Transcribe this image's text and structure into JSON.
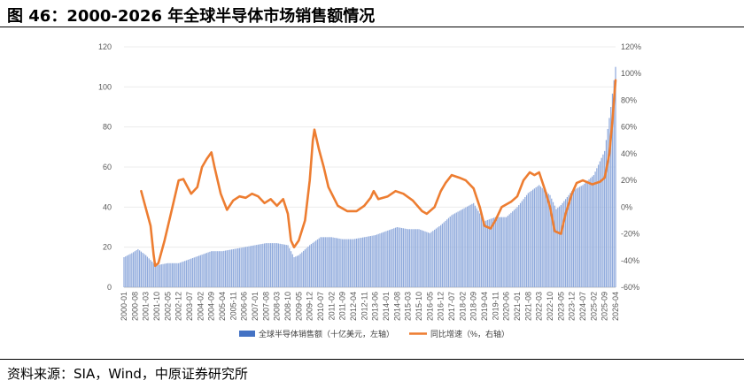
{
  "header": {
    "title": "图 46：2000-2026 年全球半导体市场销售额情况"
  },
  "footer": {
    "source": "资料来源：SIA，Wind，中原证券研究所"
  },
  "chart_data": {
    "type": "bar+line",
    "title": "",
    "left_axis": {
      "min": 0,
      "max": 120,
      "ticks": [
        "0",
        "20",
        "40",
        "60",
        "80",
        "100",
        "120"
      ]
    },
    "right_axis": {
      "min": -60,
      "max": 120,
      "ticks": [
        "-60%",
        "-40%",
        "-20%",
        "0%",
        "20%",
        "40%",
        "60%",
        "80%",
        "100%",
        "120%"
      ]
    },
    "x_tick_labels": [
      "2000-01",
      "2000-08",
      "2001-03",
      "2001-10",
      "2002-05",
      "2002-12",
      "2003-07",
      "2004-02",
      "2004-09",
      "2005-04",
      "2005-11",
      "2006-06",
      "2007-01",
      "2007-08",
      "2008-03",
      "2008-10",
      "2009-05",
      "2009-12",
      "2010-07",
      "2011-02",
      "2011-09",
      "2012-04",
      "2012-11",
      "2013-06",
      "2014-01",
      "2014-08",
      "2015-03",
      "2015-10",
      "2016-05",
      "2016-12",
      "2017-07",
      "2018-02",
      "2018-09",
      "2019-04",
      "2019-11",
      "2020-06",
      "2021-01",
      "2021-08",
      "2022-03",
      "2022-10",
      "2023-05",
      "2023-12",
      "2024-07",
      "2025-02",
      "2025-09",
      "2026-04"
    ],
    "legend": [
      {
        "name": "全球半导体销售额（十亿美元，左轴）",
        "type": "bar",
        "color": "#4472C4"
      },
      {
        "name": "同比增速（%，右轴）",
        "type": "line",
        "color": "#ED7D31"
      }
    ],
    "legend_position": "bottom",
    "series": [
      {
        "name": "全球半导体销售额（十亿美元，左轴）",
        "axis": "left",
        "type": "bar",
        "points": [
          [
            "2000-01",
            15
          ],
          [
            "2000-06",
            17
          ],
          [
            "2000-10",
            19
          ],
          [
            "2001-03",
            16
          ],
          [
            "2001-08",
            12
          ],
          [
            "2001-10",
            11
          ],
          [
            "2002-05",
            12
          ],
          [
            "2002-12",
            12
          ],
          [
            "2003-07",
            14
          ],
          [
            "2004-02",
            16
          ],
          [
            "2004-09",
            18
          ],
          [
            "2005-04",
            18
          ],
          [
            "2005-11",
            19
          ],
          [
            "2006-06",
            20
          ],
          [
            "2007-01",
            21
          ],
          [
            "2007-08",
            22
          ],
          [
            "2008-03",
            22
          ],
          [
            "2008-10",
            21
          ],
          [
            "2009-02",
            15
          ],
          [
            "2009-05",
            16
          ],
          [
            "2009-12",
            21
          ],
          [
            "2010-07",
            25
          ],
          [
            "2011-02",
            25
          ],
          [
            "2011-09",
            24
          ],
          [
            "2012-04",
            24
          ],
          [
            "2012-11",
            25
          ],
          [
            "2013-06",
            26
          ],
          [
            "2014-01",
            28
          ],
          [
            "2014-08",
            30
          ],
          [
            "2015-03",
            29
          ],
          [
            "2015-10",
            29
          ],
          [
            "2016-05",
            27
          ],
          [
            "2016-12",
            31
          ],
          [
            "2017-07",
            36
          ],
          [
            "2018-02",
            39
          ],
          [
            "2018-09",
            42
          ],
          [
            "2019-04",
            33
          ],
          [
            "2019-11",
            35
          ],
          [
            "2020-06",
            35
          ],
          [
            "2021-01",
            40
          ],
          [
            "2021-08",
            47
          ],
          [
            "2022-03",
            51
          ],
          [
            "2022-10",
            46
          ],
          [
            "2023-02",
            39
          ],
          [
            "2023-05",
            41
          ],
          [
            "2023-12",
            48
          ],
          [
            "2024-07",
            51
          ],
          [
            "2025-02",
            56
          ],
          [
            "2025-09",
            68
          ],
          [
            "2026-01",
            90
          ],
          [
            "2026-04",
            110
          ]
        ]
      },
      {
        "name": "同比增速（%，右轴）",
        "axis": "right",
        "type": "line",
        "points": [
          [
            "2000-12",
            12
          ],
          [
            "2001-06",
            -14
          ],
          [
            "2001-08",
            -36
          ],
          [
            "2001-09",
            -44
          ],
          [
            "2001-11",
            -42
          ],
          [
            "2002-03",
            -25
          ],
          [
            "2002-07",
            -5
          ],
          [
            "2002-12",
            20
          ],
          [
            "2003-03",
            21
          ],
          [
            "2003-08",
            10
          ],
          [
            "2003-12",
            15
          ],
          [
            "2004-03",
            30
          ],
          [
            "2004-06",
            36
          ],
          [
            "2004-09",
            41
          ],
          [
            "2004-11",
            30
          ],
          [
            "2005-03",
            10
          ],
          [
            "2005-07",
            -2
          ],
          [
            "2005-11",
            5
          ],
          [
            "2006-03",
            8
          ],
          [
            "2006-07",
            7
          ],
          [
            "2006-11",
            10
          ],
          [
            "2007-03",
            8
          ],
          [
            "2007-07",
            3
          ],
          [
            "2007-11",
            6
          ],
          [
            "2008-03",
            1
          ],
          [
            "2008-07",
            6
          ],
          [
            "2008-10",
            -5
          ],
          [
            "2008-12",
            -25
          ],
          [
            "2009-02",
            -30
          ],
          [
            "2009-05",
            -25
          ],
          [
            "2009-09",
            -10
          ],
          [
            "2009-12",
            20
          ],
          [
            "2010-02",
            50
          ],
          [
            "2010-03",
            58
          ],
          [
            "2010-06",
            43
          ],
          [
            "2010-09",
            30
          ],
          [
            "2010-12",
            15
          ],
          [
            "2011-06",
            1
          ],
          [
            "2011-12",
            -3
          ],
          [
            "2012-06",
            -3
          ],
          [
            "2012-11",
            1
          ],
          [
            "2013-03",
            7
          ],
          [
            "2013-05",
            12
          ],
          [
            "2013-08",
            6
          ],
          [
            "2014-02",
            8
          ],
          [
            "2014-07",
            12
          ],
          [
            "2014-12",
            10
          ],
          [
            "2015-06",
            5
          ],
          [
            "2015-12",
            -3
          ],
          [
            "2016-03",
            -5
          ],
          [
            "2016-08",
            0
          ],
          [
            "2016-12",
            12
          ],
          [
            "2017-03",
            18
          ],
          [
            "2017-07",
            24
          ],
          [
            "2017-12",
            22
          ],
          [
            "2018-04",
            20
          ],
          [
            "2018-09",
            14
          ],
          [
            "2019-01",
            0
          ],
          [
            "2019-04",
            -14
          ],
          [
            "2019-08",
            -16
          ],
          [
            "2019-11",
            -10
          ],
          [
            "2020-03",
            0
          ],
          [
            "2020-09",
            4
          ],
          [
            "2021-01",
            8
          ],
          [
            "2021-05",
            20
          ],
          [
            "2021-09",
            26
          ],
          [
            "2021-12",
            24
          ],
          [
            "2022-03",
            26
          ],
          [
            "2022-07",
            12
          ],
          [
            "2022-10",
            0
          ],
          [
            "2023-01",
            -18
          ],
          [
            "2023-05",
            -20
          ],
          [
            "2023-08",
            -5
          ],
          [
            "2023-12",
            10
          ],
          [
            "2024-03",
            18
          ],
          [
            "2024-07",
            20
          ],
          [
            "2025-01",
            17
          ],
          [
            "2025-06",
            19
          ],
          [
            "2025-09",
            22
          ],
          [
            "2025-12",
            40
          ],
          [
            "2026-02",
            65
          ],
          [
            "2026-03",
            80
          ],
          [
            "2026-04",
            95
          ]
        ]
      }
    ]
  }
}
